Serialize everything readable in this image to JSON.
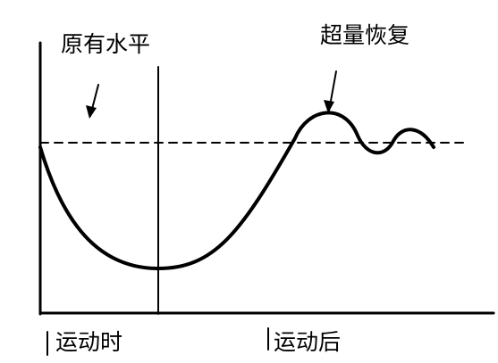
{
  "labels": {
    "baseline": "原有水平",
    "supercompensation": "超量恢复",
    "during_exercise": "运动时",
    "after_exercise": "运动后"
  }
}
